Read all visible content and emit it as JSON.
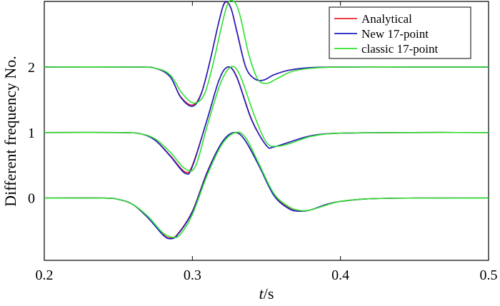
{
  "chart_data": {
    "type": "line",
    "xlabel_italic": "t",
    "xlabel_unit": "/s",
    "ylabel": "Different frequency No.",
    "xlim": [
      0.2,
      0.5
    ],
    "ylim": [
      -0.95,
      3.0
    ],
    "xticks": [
      0.2,
      0.3,
      0.4,
      0.5
    ],
    "xtick_labels": [
      "0.2",
      "0.3",
      "0.4",
      "0.5"
    ],
    "yticks": [
      0,
      1,
      2
    ],
    "ytick_labels": [
      "0",
      "1",
      "2"
    ],
    "grid": false,
    "legend_position": "top-right",
    "series": [
      {
        "name": "Analytical",
        "color": "#e8202a",
        "offsets": [
          {
            "offset": 0,
            "x": [
              0.2,
              0.24,
              0.25,
              0.26,
              0.27,
              0.28,
              0.285,
              0.29,
              0.3,
              0.31,
              0.32,
              0.328,
              0.335,
              0.345,
              0.355,
              0.365,
              0.372,
              0.38,
              0.39,
              0.4,
              0.42,
              0.45,
              0.5
            ],
            "y": [
              0,
              0,
              -0.02,
              -0.1,
              -0.3,
              -0.55,
              -0.61,
              -0.55,
              -0.2,
              0.4,
              0.85,
              1.0,
              0.9,
              0.5,
              0.05,
              -0.15,
              -0.2,
              -0.18,
              -0.1,
              -0.05,
              -0.01,
              0,
              0
            ]
          },
          {
            "offset": 1,
            "x": [
              0.2,
              0.25,
              0.265,
              0.275,
              0.285,
              0.295,
              0.3,
              0.31,
              0.318,
              0.324,
              0.33,
              0.34,
              0.35,
              0.355,
              0.365,
              0.38,
              0.4,
              0.45,
              0.5
            ],
            "y": [
              0,
              0,
              -0.02,
              -0.12,
              -0.35,
              -0.6,
              -0.5,
              0.2,
              0.8,
              1.0,
              0.85,
              0.2,
              -0.2,
              -0.22,
              -0.15,
              -0.05,
              -0.01,
              0,
              0
            ]
          },
          {
            "offset": 2,
            "x": [
              0.2,
              0.26,
              0.275,
              0.285,
              0.292,
              0.3,
              0.306,
              0.312,
              0.318,
              0.322,
              0.326,
              0.33,
              0.336,
              0.342,
              0.348,
              0.355,
              0.365,
              0.38,
              0.4,
              0.45,
              0.5
            ],
            "y": [
              0,
              0,
              -0.02,
              -0.15,
              -0.45,
              -0.58,
              -0.4,
              0.1,
              0.7,
              0.98,
              0.9,
              0.55,
              0.0,
              -0.18,
              -0.2,
              -0.12,
              -0.05,
              -0.01,
              0,
              0,
              0
            ]
          }
        ]
      },
      {
        "name": "New 17-point",
        "color": "#1c1cc4",
        "offsets": [
          {
            "offset": 0,
            "x": [
              0.2,
              0.24,
              0.25,
              0.26,
              0.27,
              0.28,
              0.285,
              0.29,
              0.3,
              0.31,
              0.32,
              0.328,
              0.335,
              0.345,
              0.355,
              0.365,
              0.372,
              0.38,
              0.39,
              0.4,
              0.42,
              0.45,
              0.5
            ],
            "y": [
              0,
              0,
              -0.02,
              -0.1,
              -0.3,
              -0.56,
              -0.62,
              -0.56,
              -0.21,
              0.39,
              0.85,
              1.0,
              0.9,
              0.49,
              0.04,
              -0.16,
              -0.2,
              -0.18,
              -0.1,
              -0.05,
              -0.01,
              0,
              0
            ]
          },
          {
            "offset": 1,
            "x": [
              0.2,
              0.25,
              0.265,
              0.275,
              0.285,
              0.295,
              0.3,
              0.31,
              0.318,
              0.324,
              0.33,
              0.34,
              0.35,
              0.355,
              0.365,
              0.38,
              0.4,
              0.45,
              0.5
            ],
            "y": [
              0,
              0,
              -0.02,
              -0.12,
              -0.36,
              -0.62,
              -0.52,
              0.2,
              0.8,
              1.0,
              0.84,
              0.19,
              -0.2,
              -0.22,
              -0.15,
              -0.05,
              -0.01,
              0,
              0
            ]
          },
          {
            "offset": 2,
            "x": [
              0.2,
              0.26,
              0.275,
              0.285,
              0.292,
              0.3,
              0.306,
              0.312,
              0.318,
              0.322,
              0.326,
              0.33,
              0.336,
              0.342,
              0.348,
              0.355,
              0.365,
              0.38,
              0.4,
              0.45,
              0.5
            ],
            "y": [
              0,
              0,
              -0.02,
              -0.15,
              -0.46,
              -0.6,
              -0.41,
              0.1,
              0.7,
              0.99,
              0.9,
              0.54,
              0.0,
              -0.18,
              -0.2,
              -0.12,
              -0.05,
              -0.01,
              0,
              0,
              0
            ]
          }
        ]
      },
      {
        "name": "classic 17-point",
        "color": "#2ee02e",
        "offsets": [
          {
            "offset": 0,
            "x": [
              0.2,
              0.24,
              0.25,
              0.26,
              0.27,
              0.28,
              0.287,
              0.292,
              0.3,
              0.31,
              0.32,
              0.329,
              0.336,
              0.345,
              0.355,
              0.365,
              0.373,
              0.38,
              0.39,
              0.4,
              0.42,
              0.45,
              0.5
            ],
            "y": [
              0,
              0,
              -0.02,
              -0.1,
              -0.28,
              -0.53,
              -0.6,
              -0.55,
              -0.25,
              0.35,
              0.82,
              1.0,
              0.92,
              0.52,
              0.07,
              -0.13,
              -0.19,
              -0.18,
              -0.11,
              -0.05,
              -0.01,
              0,
              0
            ]
          },
          {
            "offset": 1,
            "x": [
              0.2,
              0.25,
              0.265,
              0.275,
              0.285,
              0.295,
              0.302,
              0.31,
              0.319,
              0.326,
              0.332,
              0.342,
              0.35,
              0.357,
              0.367,
              0.38,
              0.4,
              0.45,
              0.5
            ],
            "y": [
              0,
              0,
              -0.02,
              -0.1,
              -0.3,
              -0.55,
              -0.52,
              0.1,
              0.75,
              1.0,
              0.88,
              0.25,
              -0.15,
              -0.21,
              -0.16,
              -0.06,
              -0.01,
              0,
              0
            ]
          },
          {
            "offset": 2,
            "x": [
              0.2,
              0.26,
              0.275,
              0.285,
              0.293,
              0.301,
              0.308,
              0.314,
              0.32,
              0.324,
              0.328,
              0.332,
              0.338,
              0.344,
              0.35,
              0.357,
              0.367,
              0.38,
              0.4,
              0.45,
              0.5
            ],
            "y": [
              0,
              0,
              -0.02,
              -0.12,
              -0.4,
              -0.55,
              -0.42,
              0.05,
              0.65,
              0.97,
              1.0,
              0.8,
              0.2,
              -0.18,
              -0.25,
              -0.18,
              -0.07,
              -0.02,
              0,
              0,
              0
            ]
          }
        ]
      }
    ]
  }
}
